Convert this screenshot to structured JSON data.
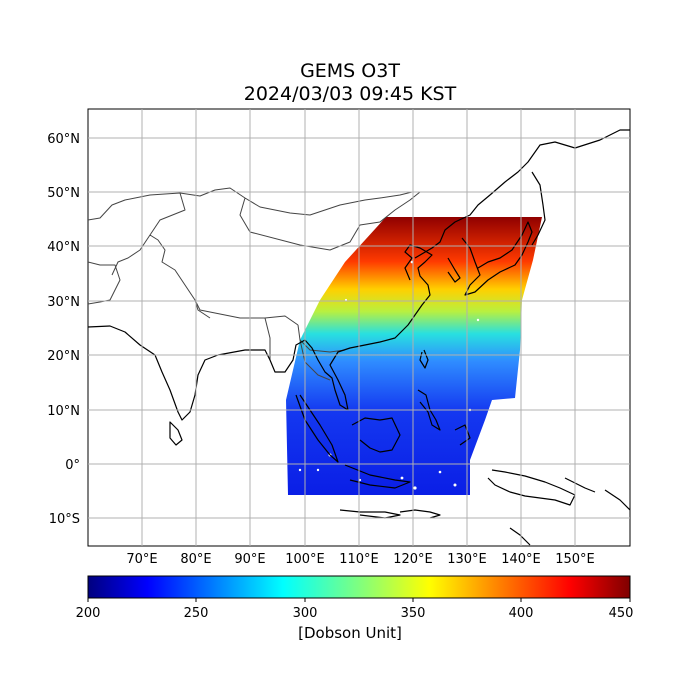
{
  "title": {
    "line1": "GEMS O3T",
    "line2": "2024/03/03 09:45 KST"
  },
  "map": {
    "lon_range": [
      60,
      160
    ],
    "lat_range": [
      -15,
      65
    ],
    "lon_ticks": [
      "70°E",
      "80°E",
      "90°E",
      "100°E",
      "110°E",
      "120°E",
      "130°E",
      "140°E",
      "150°E"
    ],
    "lat_ticks": [
      "60°N",
      "50°N",
      "40°N",
      "30°N",
      "20°N",
      "10°N",
      "0°",
      "10°S"
    ],
    "gridlines": true
  },
  "colorbar": {
    "ticks": [
      "200",
      "250",
      "300",
      "350",
      "400",
      "450"
    ],
    "label": "[Dobson Unit]",
    "range": [
      200,
      450
    ],
    "colormap": "jet"
  },
  "colors": {
    "coastline": "#000000",
    "border": "#444444",
    "grid": "#b0b0b0"
  }
}
